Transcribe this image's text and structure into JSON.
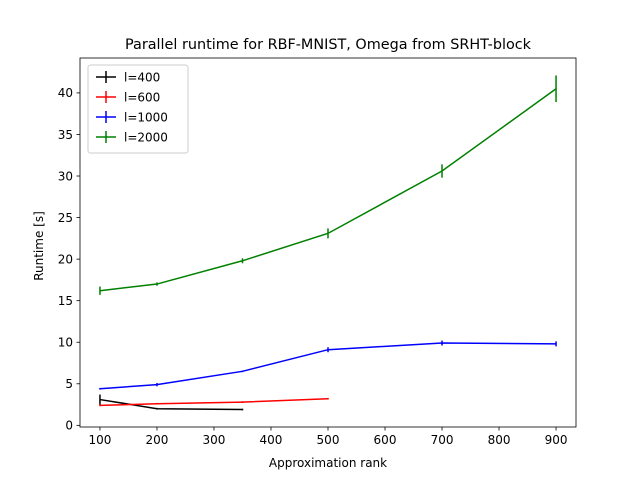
{
  "chart_data": {
    "type": "line",
    "title": "Parallel runtime for RBF-MNIST, Omega from SRHT-block",
    "xlabel": "Approximation rank",
    "ylabel": "Runtime [s]",
    "xlim": [
      65,
      935
    ],
    "ylim": [
      -0.2,
      44.2
    ],
    "xticks": [
      100,
      200,
      300,
      400,
      500,
      600,
      700,
      800,
      900
    ],
    "yticks": [
      0,
      5,
      10,
      15,
      20,
      25,
      30,
      35,
      40
    ],
    "grid": false,
    "legend_position": "top-left",
    "series": [
      {
        "name": "l=400",
        "color": "#000000",
        "x": [
          100,
          200,
          350
        ],
        "y": [
          3.1,
          2.0,
          1.9
        ],
        "err": [
          0.6,
          0.1,
          0.1
        ]
      },
      {
        "name": "l=600",
        "color": "#ff0000",
        "x": [
          100,
          200,
          350,
          500
        ],
        "y": [
          2.4,
          2.6,
          2.8,
          3.2
        ],
        "err": [
          0.1,
          0.1,
          0.1,
          0.1
        ]
      },
      {
        "name": "l=1000",
        "color": "#0000ff",
        "x": [
          100,
          200,
          350,
          500,
          700,
          900
        ],
        "y": [
          4.4,
          4.9,
          6.5,
          9.1,
          9.9,
          9.8
        ],
        "err": [
          0.1,
          0.2,
          0.1,
          0.3,
          0.3,
          0.3
        ]
      },
      {
        "name": "l=2000",
        "color": "#008000",
        "x": [
          100,
          200,
          350,
          500,
          700,
          900
        ],
        "y": [
          16.2,
          17.0,
          19.8,
          23.1,
          30.6,
          40.5
        ],
        "err": [
          0.5,
          0.2,
          0.3,
          0.6,
          0.8,
          1.6
        ]
      }
    ]
  }
}
